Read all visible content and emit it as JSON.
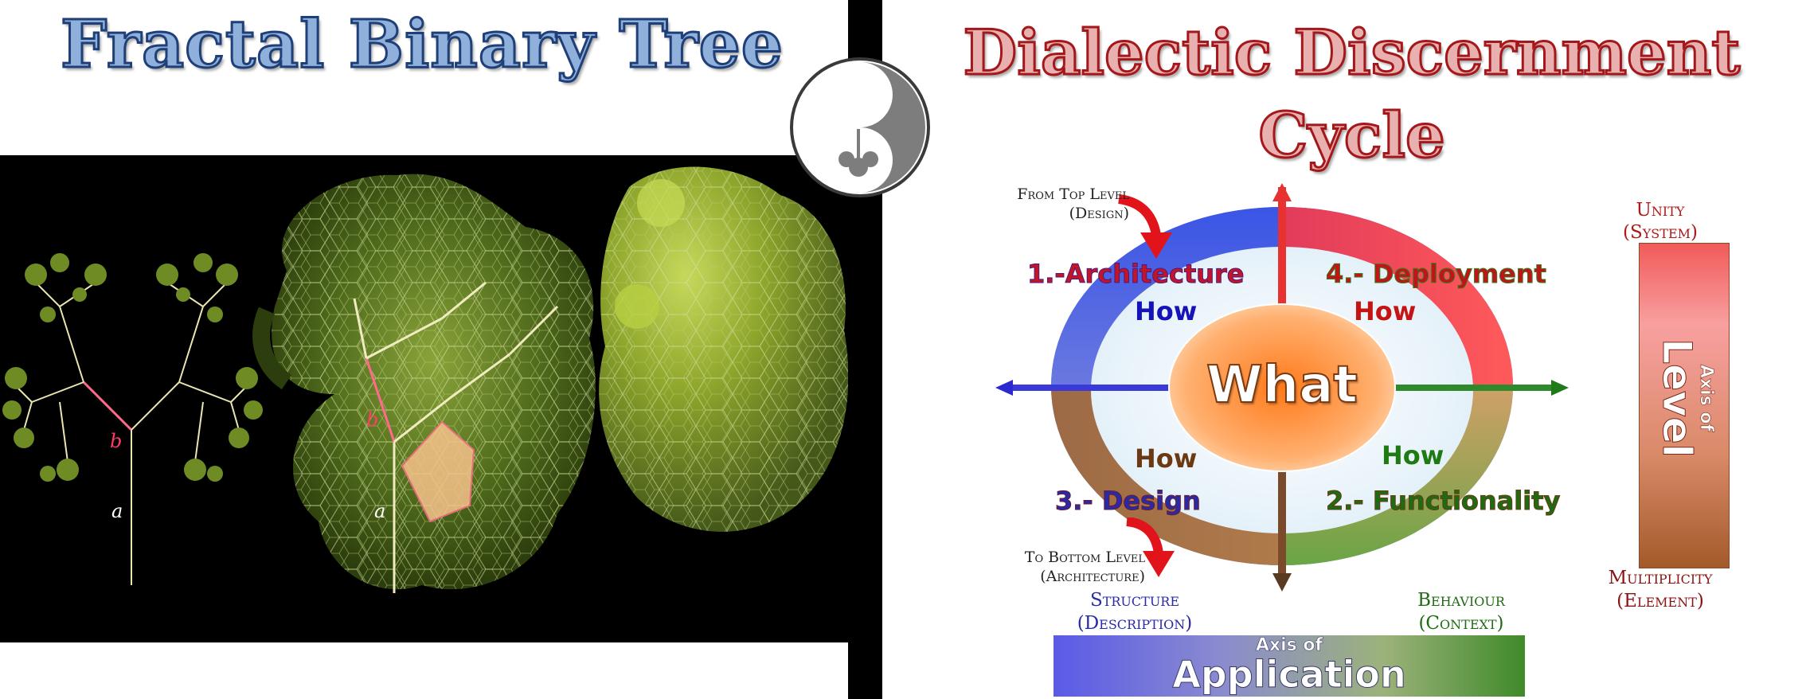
{
  "left": {
    "title": "Fractal Binary Tree",
    "angle_labels": {
      "a1": "a",
      "b1": "b",
      "a2": "a",
      "b2": "b"
    }
  },
  "right": {
    "title_line1": "Dialectic Discernment",
    "title_line2": "Cycle",
    "from_top_line1": "From Top Level",
    "from_top_line2": "(Design)",
    "to_bottom_line1": "To Bottom Level",
    "to_bottom_line2": "(Architecture)",
    "q1": "1.-Architecture",
    "q2": "2.- Functionality",
    "q3": "3.- Design",
    "q4": "4.- Deployment",
    "how": "How",
    "center": "What",
    "unity_line1": "Unity",
    "unity_line2": "(System)",
    "multi_line1": "Multiplicity",
    "multi_line2": "(Element)",
    "level_small": "Axis of",
    "level_big": "Level",
    "structure_line1": "Structure",
    "structure_line2": "(Description)",
    "behaviour_line1": "Behaviour",
    "behaviour_line2": "(Context)",
    "app_small": "Axis of",
    "app_big": "Application"
  },
  "colors": {
    "architecture": "#c2152a",
    "design_blue": "#2a2aa8",
    "deployment": "#c0141a",
    "functionality": "#1f6b13",
    "how_blue": "#1414b8",
    "how_red": "#c41414",
    "how_brown": "#6b3a12",
    "how_green": "#1f7a14",
    "dark_red": "#8a1212"
  }
}
